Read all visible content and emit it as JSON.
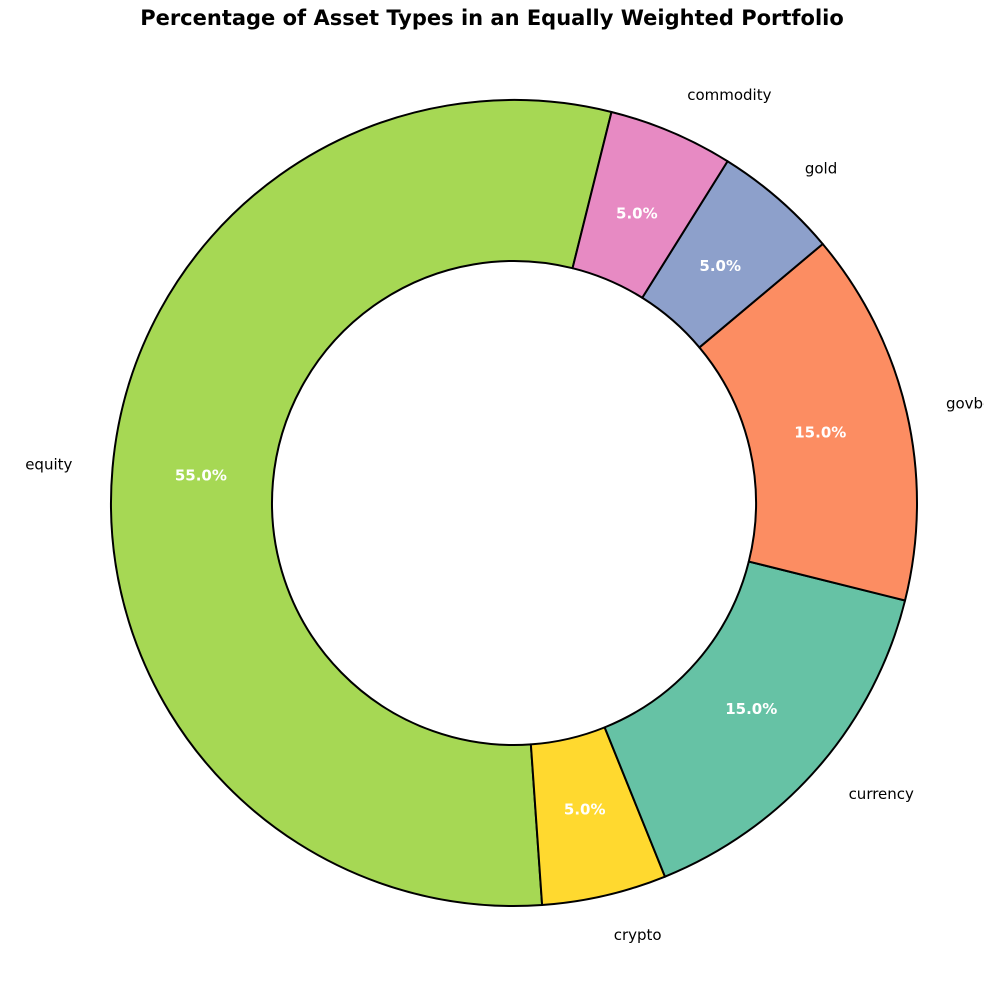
{
  "chart_data": {
    "type": "pie",
    "style": "donut",
    "title": "Percentage of Asset Types in an Equally Weighted Portfolio",
    "categories": [
      "equity",
      "crypto",
      "currency",
      "govbond",
      "gold",
      "commodity"
    ],
    "values": [
      55.0,
      5.0,
      15.0,
      15.0,
      5.0,
      5.0
    ],
    "value_labels": [
      "55.0%",
      "5.0%",
      "15.0%",
      "15.0%",
      "5.0%",
      "5.0%"
    ],
    "colors": [
      "#a6d854",
      "#ffd92f",
      "#66c2a5",
      "#fc8d62",
      "#8da0cb",
      "#e78ac3"
    ],
    "legend": "none"
  }
}
